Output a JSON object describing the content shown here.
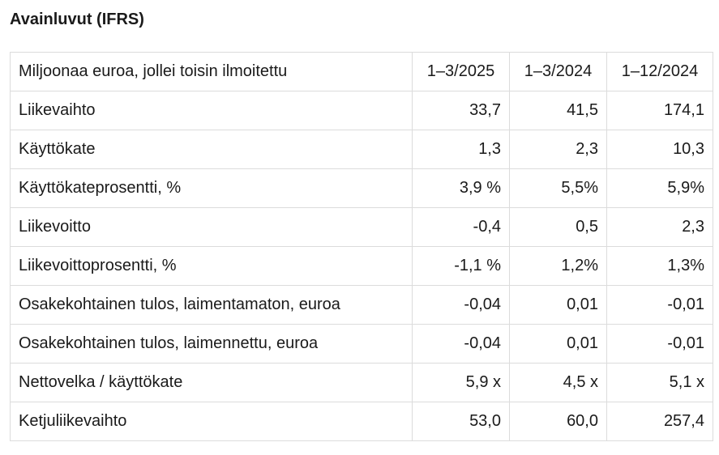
{
  "title": "Avainluvut (IFRS)",
  "table": {
    "header": {
      "label": "Miljoonaa euroa, jollei toisin ilmoitettu",
      "periods": [
        "1–3/2025",
        "1–3/2024",
        "1–12/2024"
      ]
    },
    "rows": [
      {
        "label": "Liikevaihto",
        "values": [
          "33,7",
          "41,5",
          "174,1"
        ]
      },
      {
        "label": "Käyttökate",
        "values": [
          "1,3",
          "2,3",
          "10,3"
        ]
      },
      {
        "label": "Käyttökateprosentti, %",
        "values": [
          "3,9 %",
          "5,5%",
          "5,9%"
        ]
      },
      {
        "label": "Liikevoitto",
        "values": [
          "-0,4",
          "0,5",
          "2,3"
        ]
      },
      {
        "label": "Liikevoittoprosentti, %",
        "values": [
          "-1,1 %",
          "1,2%",
          "1,3%"
        ]
      },
      {
        "label": "Osakekohtainen tulos, laimentamaton, euroa",
        "values": [
          "-0,04",
          "0,01",
          "-0,01"
        ]
      },
      {
        "label": "Osakekohtainen tulos, laimennettu, euroa",
        "values": [
          "-0,04",
          "0,01",
          "-0,01"
        ]
      },
      {
        "label": "Nettovelka / käyttökate",
        "values": [
          "5,9 x",
          "4,5 x",
          "5,1 x"
        ]
      },
      {
        "label": "Ketjuliikevaihto",
        "values": [
          "53,0",
          "60,0",
          "257,4"
        ]
      }
    ]
  }
}
